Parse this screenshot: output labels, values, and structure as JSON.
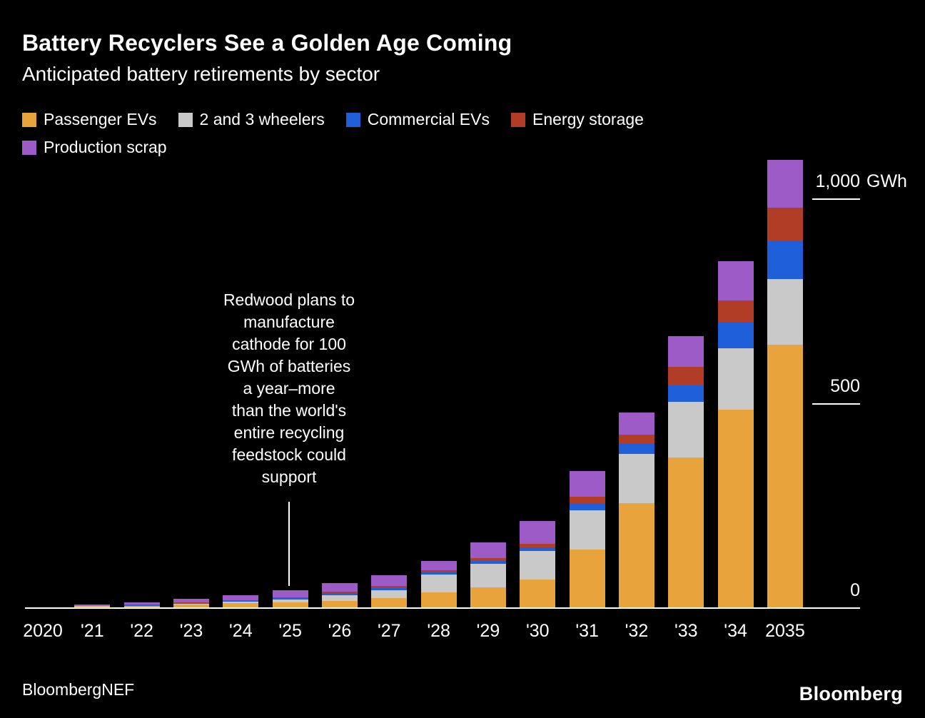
{
  "chart_data": {
    "type": "bar",
    "stacked": true,
    "title": "Battery Recyclers See a Golden Age Coming",
    "subtitle": "Anticipated battery retirements by sector",
    "unit": "GWh",
    "legend_position": "top",
    "grid": false,
    "background": "#000000",
    "categories": [
      "2020",
      "'21",
      "'22",
      "'23",
      "'24",
      "'25",
      "'26",
      "'27",
      "'28",
      "'29",
      "'30",
      "'31",
      "'32",
      "'33",
      "'34",
      "2035"
    ],
    "series": [
      {
        "name": "Passenger EVs",
        "color": "#E8A33D",
        "values": [
          1,
          4,
          5,
          9,
          12,
          14,
          17,
          24,
          38,
          50,
          70,
          143,
          256,
          368,
          486,
          645
        ]
      },
      {
        "name": "2 and 3 wheelers",
        "color": "#C9C9C9",
        "values": [
          0,
          1,
          1,
          2,
          3,
          7,
          14,
          20,
          44,
          58,
          70,
          96,
          122,
          136,
          150,
          160
        ]
      },
      {
        "name": "Commercial EVs",
        "color": "#1F5FD9",
        "values": [
          0,
          0,
          1,
          1,
          2,
          3,
          5,
          5,
          5,
          7,
          9,
          16,
          23,
          40,
          64,
          92
        ]
      },
      {
        "name": "Energy storage",
        "color": "#B23D26",
        "values": [
          0,
          1,
          1,
          2,
          2,
          3,
          4,
          5,
          5,
          7,
          9,
          17,
          24,
          47,
          52,
          82
        ]
      },
      {
        "name": "Production scrap",
        "color": "#9C5BC7",
        "values": [
          1,
          3,
          6,
          9,
          12,
          16,
          21,
          26,
          23,
          38,
          56,
          63,
          54,
          75,
          96,
          117
        ]
      }
    ],
    "ylim": [
      0,
      1100
    ],
    "yticks": [
      {
        "value": 1000,
        "label": "1,000",
        "suffix": "GWh"
      },
      {
        "value": 500,
        "label": "500"
      },
      {
        "value": 0,
        "label": "0"
      }
    ],
    "annotation": {
      "target_category": "'25",
      "lines": [
        "Redwood plans to",
        "manufacture",
        "cathode for 100",
        "GWh of batteries",
        "a year–more",
        "than the world's",
        "entire recycling",
        "feedstock could",
        "support"
      ]
    }
  },
  "footer": {
    "source": "BloombergNEF",
    "brand": "Bloomberg"
  }
}
